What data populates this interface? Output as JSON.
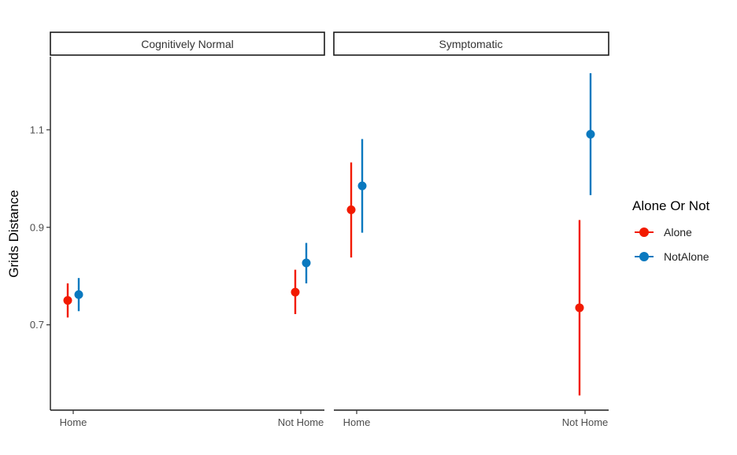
{
  "chart_data": {
    "type": "scatter",
    "title": "",
    "ylabel": "Grids Distance",
    "xlabel": "",
    "ylim": [
      0.525,
      1.25
    ],
    "yticks": [
      0.7,
      0.9,
      1.1
    ],
    "ytick_labels": [
      "0.7",
      "0.9",
      "1.1"
    ],
    "categories": [
      "Home",
      "Not Home"
    ],
    "facets": [
      "Cognitively Normal",
      "Symptomatic"
    ],
    "legend": {
      "title": "Alone Or Not",
      "entries": [
        "Alone",
        "NotAlone"
      ],
      "position": "right"
    },
    "series": [
      {
        "name": "Alone",
        "color": "#f21a00",
        "points": [
          {
            "facet": "Cognitively Normal",
            "x": "Home",
            "y": 0.75,
            "ymin": 0.715,
            "ymax": 0.785
          },
          {
            "facet": "Cognitively Normal",
            "x": "Not Home",
            "y": 0.767,
            "ymin": 0.722,
            "ymax": 0.813
          },
          {
            "facet": "Symptomatic",
            "x": "Home",
            "y": 0.936,
            "ymin": 0.838,
            "ymax": 1.033
          },
          {
            "facet": "Symptomatic",
            "x": "Not Home",
            "y": 0.735,
            "ymin": 0.555,
            "ymax": 0.915
          }
        ]
      },
      {
        "name": "NotAlone",
        "color": "#0a79bf",
        "points": [
          {
            "facet": "Cognitively Normal",
            "x": "Home",
            "y": 0.762,
            "ymin": 0.728,
            "ymax": 0.796
          },
          {
            "facet": "Cognitively Normal",
            "x": "Not Home",
            "y": 0.827,
            "ymin": 0.785,
            "ymax": 0.868
          },
          {
            "facet": "Symptomatic",
            "x": "Home",
            "y": 0.985,
            "ymin": 0.889,
            "ymax": 1.081
          },
          {
            "facet": "Symptomatic",
            "x": "Not Home",
            "y": 1.091,
            "ymin": 0.966,
            "ymax": 1.216
          }
        ]
      }
    ]
  }
}
